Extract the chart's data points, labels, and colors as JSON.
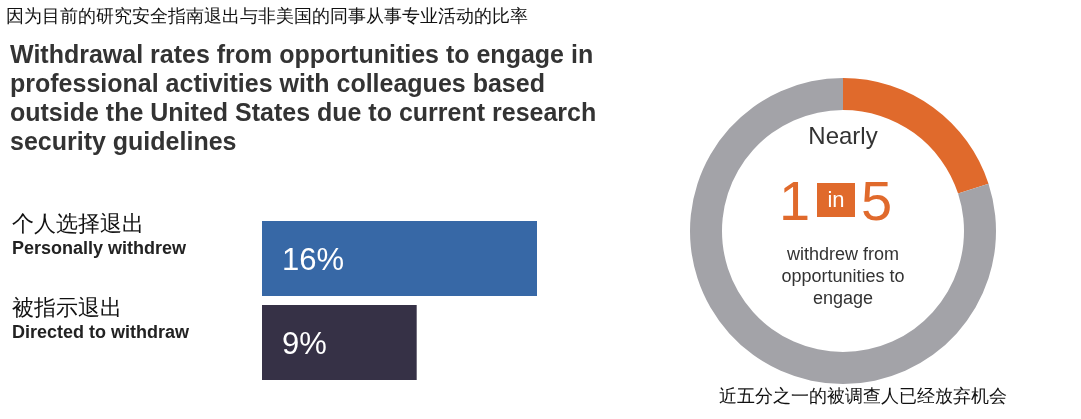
{
  "chart_data": [
    {
      "type": "bar",
      "orientation": "horizontal",
      "title": "因为目前的研究安全指南退出与非美国的同事从事专业活动的比率",
      "subtitle": "Withdrawal rates from opportunities to engage in professional activities with colleagues based outside the United States due to current research security guidelines",
      "categories": [
        "个人选择退出\nPersonally withdrew",
        "被指示退出\nDirected to withdraw"
      ],
      "values": [
        16,
        9
      ],
      "colors": [
        "#3768a6",
        "#363146"
      ],
      "value_labels": [
        "16%",
        "9%"
      ]
    },
    {
      "type": "donut",
      "categories": [
        null,
        null
      ],
      "values": [
        20,
        80
      ],
      "colors": [
        "#e06a2c",
        "#a3a3a8"
      ],
      "annotations": [
        "Nearly",
        "1",
        "in",
        "5",
        "withdrew from opportunities to engage",
        "近五分之一的被调查人已经放弃机会"
      ]
    }
  ]
}
